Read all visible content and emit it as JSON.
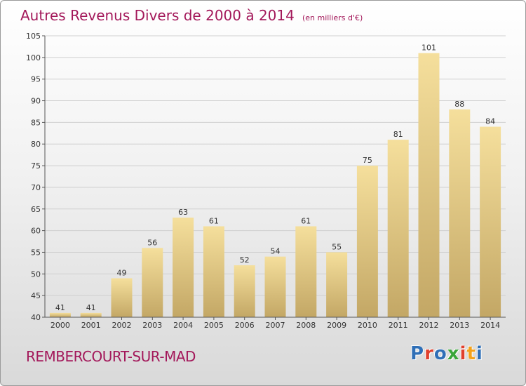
{
  "title": "Autres Revenus Divers de 2000 à 2014",
  "subtitle": "(en milliers d'€)",
  "commune": "REMBERCOURT-SUR-MAD",
  "logo": {
    "text": "Proxiti",
    "colors": [
      "#2f6fb7",
      "#e0402d",
      "#2f6fb7",
      "#3aa63a",
      "#e0402d",
      "#f4a21b",
      "#2f6fb7"
    ]
  },
  "colors": {
    "title": "#a3185a",
    "bar_top": "#f5df9c",
    "bar_bottom": "#c3a765",
    "grid": "#cfcfcf"
  },
  "chart_data": {
    "type": "bar",
    "categories": [
      "2000",
      "2001",
      "2002",
      "2003",
      "2004",
      "2005",
      "2006",
      "2007",
      "2008",
      "2009",
      "2010",
      "2011",
      "2012",
      "2013",
      "2014"
    ],
    "values": [
      41,
      41,
      49,
      56,
      63,
      61,
      52,
      54,
      61,
      55,
      75,
      81,
      101,
      88,
      84
    ],
    "ylim": [
      40,
      105
    ],
    "yticks": [
      40,
      45,
      50,
      55,
      60,
      65,
      70,
      75,
      80,
      85,
      90,
      95,
      100,
      105
    ],
    "grid": true,
    "legend": "none"
  }
}
